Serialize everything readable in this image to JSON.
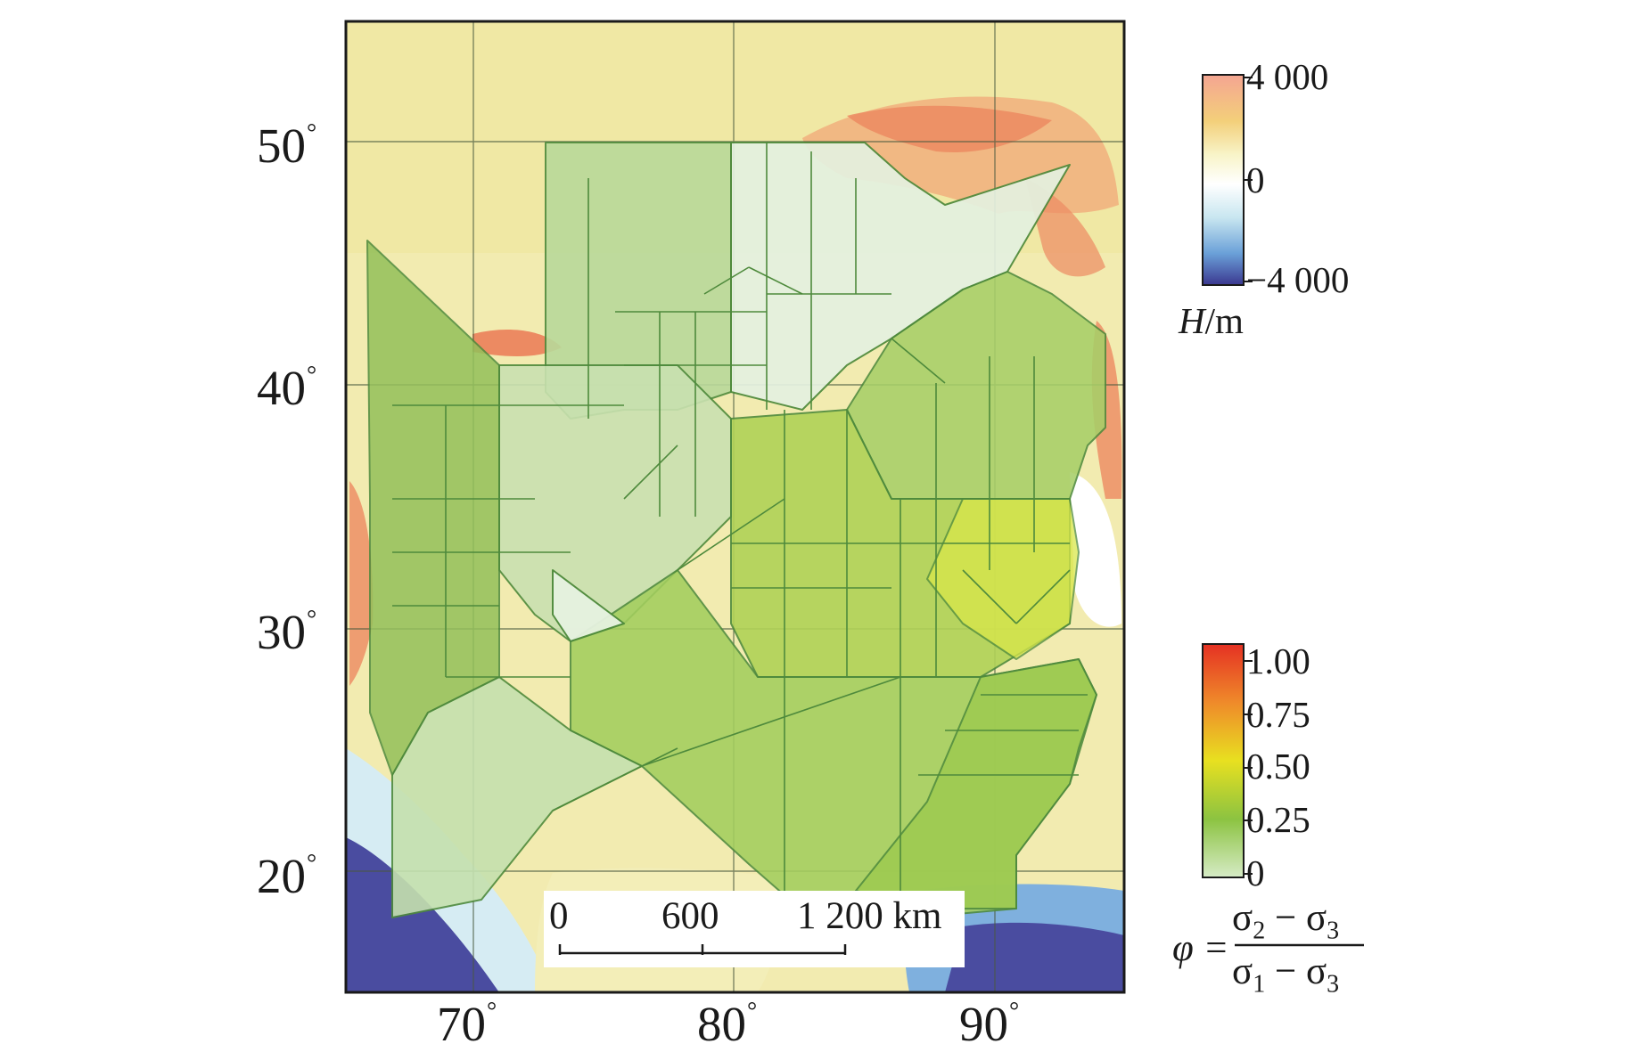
{
  "map": {
    "latitude_labels": [
      "50°",
      "40°",
      "30°",
      "20°"
    ],
    "longitude_labels": [
      "70°",
      "80°",
      "90°"
    ],
    "scale_bar": {
      "ticks": [
        "0",
        "600",
        "1 200 km"
      ]
    }
  },
  "elevation_legend": {
    "title_var": "H",
    "title_unit": "/m",
    "ticks": [
      "4 000",
      "0",
      "−4 000"
    ],
    "colors": [
      "#f4a592",
      "#f3cf7a",
      "#f8f4c8",
      "#ffffff",
      "#c8e6f0",
      "#6aa0d8",
      "#3b3890"
    ]
  },
  "phi_legend": {
    "ticks": [
      "1.00",
      "0.75",
      "0.50",
      "0.25",
      "0"
    ],
    "colors": [
      "#e53123",
      "#ef8a2a",
      "#e8e020",
      "#8cc341",
      "#d6ebc6"
    ],
    "formula": {
      "lhs": "φ =",
      "numerator": "σ2 − σ3",
      "denominator": "σ1 − σ3"
    }
  }
}
